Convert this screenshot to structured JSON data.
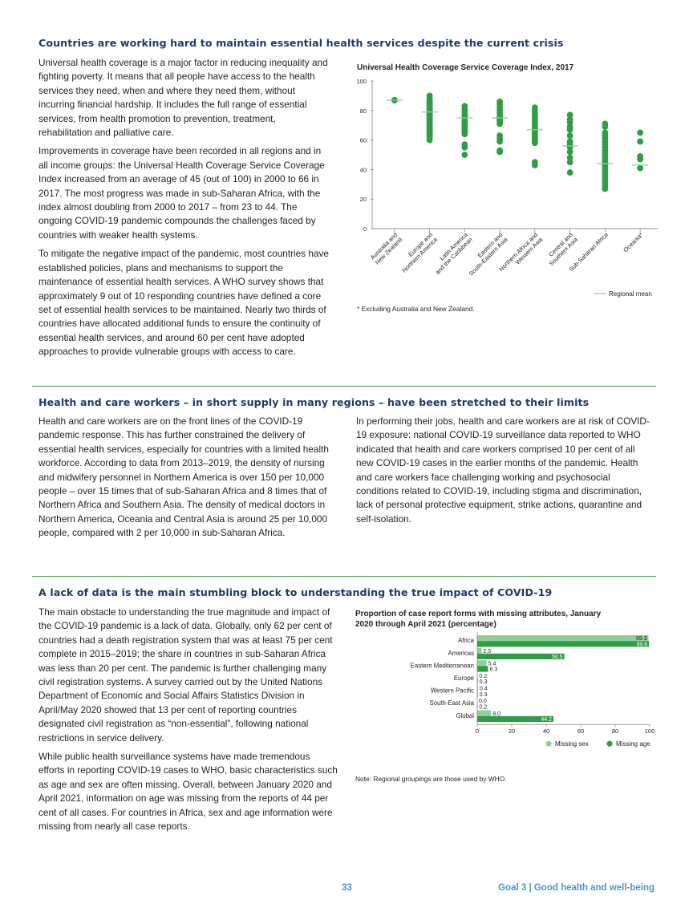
{
  "section1": {
    "title": "Countries are working hard to maintain essential health services despite the current crisis",
    "paragraphs": [
      "Universal health coverage is a major factor in reducing inequality and fighting poverty. It means that all people have access to the health services they need, when and where they need them, without incurring financial hardship. It includes the full range of essential services, from health promotion to prevention, treatment, rehabilitation and palliative care.",
      "Improvements in coverage have been recorded in all regions and in all income groups: the Universal Health Coverage Service Coverage Index increased from an average of 45 (out of 100) in 2000 to 66 in 2017. The most progress was made in sub-Saharan Africa, with the index almost doubling from 2000 to 2017 – from 23 to 44. The ongoing COVID-19 pandemic compounds the challenges faced by countries with weaker health systems.",
      "To mitigate the negative impact of the pandemic, most countries have established policies, plans and mechanisms to support the maintenance of essential health services. A WHO survey shows that approximately 9 out of 10 responding countries have defined a core set of essential health services to be maintained. Nearly two thirds of countries have allocated additional funds to ensure the continuity of essential health services, and around 60 per cent have adopted approaches to provide vulnerable groups with access to care."
    ],
    "chart_note": "* Excluding Australia and New Zealand."
  },
  "section2": {
    "title": "Health and care workers – in short supply in many regions – have been stretched to their limits",
    "col_left": "Health and care workers are on the front lines of the COVID-19 pandemic response. This has further constrained the delivery of essential health services, especially for countries with a limited health workforce. According to data from 2013–2019, the density of nursing and midwifery personnel in Northern America is over 150 per 10,000 people – over 15 times that of sub-Saharan Africa and 8 times that of Northern Africa and Southern Asia. The density of medical doctors in Northern America, Oceania and Central Asia is around 25 per 10,000 people, compared with 2 per 10,000 in sub-Saharan Africa.",
    "col_right": "In performing their jobs, health and care workers are at risk of COVID-19 exposure: national COVID-19 surveillance data reported to WHO indicated that health and care workers comprised 10 per cent of all new COVID-19 cases in the earlier months of the pandemic. Health and care workers face challenging working and psychosocial conditions related to COVID-19, including stigma and discrimination, lack of personal protective equipment, strike actions, quarantine and self-isolation."
  },
  "section3": {
    "title": "A lack of data is the main stumbling block to understanding the true impact of COVID-19",
    "paragraphs": [
      "The main obstacle to understanding the true magnitude and impact of the COVID-19 pandemic is a lack of data. Globally, only 62 per cent of countries had a death registration system that was at least 75 per cent complete in 2015–2019; the share in countries in sub-Saharan Africa was less than 20 per cent. The pandemic is further challenging many civil registration systems. A survey carried out by the United Nations Department of Economic and Social Affairs Statistics Division in April/May 2020 showed that 13 per cent of reporting countries designated civil registration as “non-essential”, following national restrictions in service delivery.",
      "While public health surveillance systems have made tremendous efforts in reporting COVID-19 cases to WHO, basic characteristics such as age and sex are often missing. Overall, between January 2020 and April 2021, information on age was missing from the reports of 44 per cent of all cases. For countries in Africa, sex and age information were missing from nearly all case reports."
    ],
    "chart_note": "Note: Regional groupings are those used by WHO."
  },
  "footer": {
    "page_number": "33",
    "goal": "Goal 3 | Good health and well-being"
  },
  "colors": {
    "title": "#1f3a6b",
    "rule": "#3aa54a",
    "dot": "#2e9d46",
    "mean": "#8fcf98",
    "missing_sex": "#8fcf98",
    "missing_age": "#2e9d46",
    "footer": "#4e94d0"
  },
  "chart_data": [
    {
      "type": "scatter",
      "title": "Universal Health Coverage Service Coverage Index, 2017",
      "ylim": [
        0,
        100
      ],
      "yticks": [
        "0",
        "20",
        "40",
        "60",
        "80",
        "100"
      ],
      "grid": false,
      "legend": {
        "mean_label": "Regional mean",
        "placement": "bottom-right"
      },
      "categories": [
        [
          "Australia and",
          "New Zealand"
        ],
        [
          "Europe and",
          "Northern America"
        ],
        [
          "Latin America",
          "and the Caribbean"
        ],
        [
          "Eastern and",
          "South-Eastern Asia"
        ],
        [
          "Northern Africa and",
          "Western Asia"
        ],
        [
          "Central and",
          "Southern Asia"
        ],
        [
          "Sub-Saharan Africa"
        ],
        [
          "Oceania*"
        ]
      ],
      "points": [
        [
          87,
          87
        ],
        [
          90,
          88,
          86,
          85,
          84,
          83,
          82,
          81,
          80,
          79,
          78,
          77,
          76,
          75,
          74,
          73,
          72,
          71,
          70,
          69,
          68,
          67,
          66,
          65,
          64,
          63,
          62,
          60
        ],
        [
          83,
          81,
          79,
          77,
          76,
          75,
          73,
          72,
          71,
          70,
          69,
          68,
          67,
          66,
          65,
          64,
          57,
          55,
          50
        ],
        [
          86,
          84,
          82,
          80,
          78,
          76,
          75,
          74,
          73,
          72,
          71,
          63,
          61,
          59,
          53,
          52
        ],
        [
          82,
          80,
          78,
          76,
          74,
          72,
          70,
          68,
          67,
          66,
          65,
          64,
          63,
          62,
          61,
          60,
          59,
          58,
          45,
          43
        ],
        [
          77,
          74,
          72,
          69,
          67,
          63,
          59,
          57,
          55,
          52,
          48,
          45,
          38
        ],
        [
          71,
          69,
          65,
          63,
          61,
          59,
          57,
          55,
          53,
          51,
          49,
          47,
          45,
          43,
          41,
          39,
          37,
          35,
          33,
          31,
          29,
          27
        ],
        [
          65,
          59,
          49,
          47,
          41
        ]
      ],
      "means": [
        87,
        79,
        75,
        75,
        67,
        56,
        44,
        43
      ]
    },
    {
      "type": "bar",
      "title": "Proportion of case report forms with missing attributes, January 2020 through April 2021 (percentage)",
      "xlim": [
        0,
        100
      ],
      "xticks": [
        "0",
        "20",
        "40",
        "60",
        "80",
        "100"
      ],
      "categories": [
        "Africa",
        "Americas",
        "Eastern Mediterranean",
        "Europe",
        "Western Pacific",
        "South-East Asia",
        "Global"
      ],
      "series": [
        {
          "name": "Missing sex",
          "values": [
            99.3,
            2.5,
            5.4,
            0.2,
            0.4,
            0.0,
            8.0
          ],
          "labels": [
            "99.3",
            "2.5",
            "5.4",
            "0.2",
            "0.4",
            "0.0",
            "8.0"
          ]
        },
        {
          "name": "Missing age",
          "values": [
            99.6,
            50.5,
            6.3,
            0.3,
            0.3,
            0.2,
            44.2
          ],
          "labels": [
            "99.6",
            "50.5",
            "6.3",
            "0.3",
            "0.3",
            "0.2",
            "44.2"
          ]
        }
      ]
    }
  ]
}
